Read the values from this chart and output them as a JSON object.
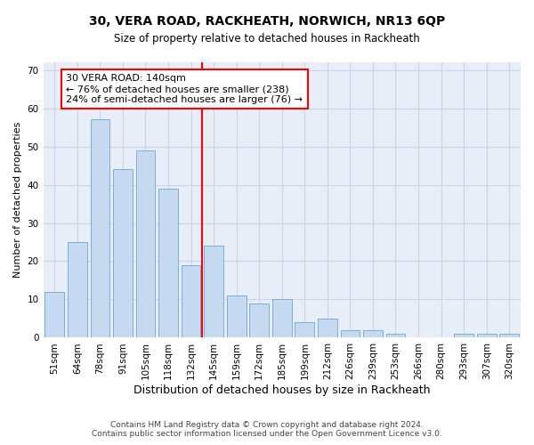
{
  "title": "30, VERA ROAD, RACKHEATH, NORWICH, NR13 6QP",
  "subtitle": "Size of property relative to detached houses in Rackheath",
  "xlabel": "Distribution of detached houses by size in Rackheath",
  "ylabel": "Number of detached properties",
  "categories": [
    "51sqm",
    "64sqm",
    "78sqm",
    "91sqm",
    "105sqm",
    "118sqm",
    "132sqm",
    "145sqm",
    "159sqm",
    "172sqm",
    "185sqm",
    "199sqm",
    "212sqm",
    "226sqm",
    "239sqm",
    "253sqm",
    "266sqm",
    "280sqm",
    "293sqm",
    "307sqm",
    "320sqm"
  ],
  "values": [
    12,
    25,
    57,
    44,
    49,
    39,
    19,
    24,
    11,
    9,
    10,
    4,
    5,
    2,
    2,
    1,
    0,
    0,
    1,
    1,
    1
  ],
  "bar_color": "#c5d9f0",
  "bar_edge_color": "#7bafd4",
  "reference_line_index": 7,
  "reference_line_label": "30 VERA ROAD: 140sqm",
  "annotation_line1": "← 76% of detached houses are smaller (238)",
  "annotation_line2": "24% of semi-detached houses are larger (76) →",
  "ylim": [
    0,
    72
  ],
  "yticks": [
    0,
    10,
    20,
    30,
    40,
    50,
    60,
    70
  ],
  "grid_color": "#c8d4e8",
  "background_color": "#e8eef8",
  "fig_background": "#ffffff",
  "title_fontsize": 10,
  "subtitle_fontsize": 8.5,
  "ylabel_fontsize": 8,
  "xlabel_fontsize": 9,
  "tick_fontsize": 7.5,
  "annotation_fontsize": 8,
  "footer_fontsize": 6.5,
  "footer_line1": "Contains HM Land Registry data © Crown copyright and database right 2024.",
  "footer_line2": "Contains public sector information licensed under the Open Government Licence v3.0."
}
